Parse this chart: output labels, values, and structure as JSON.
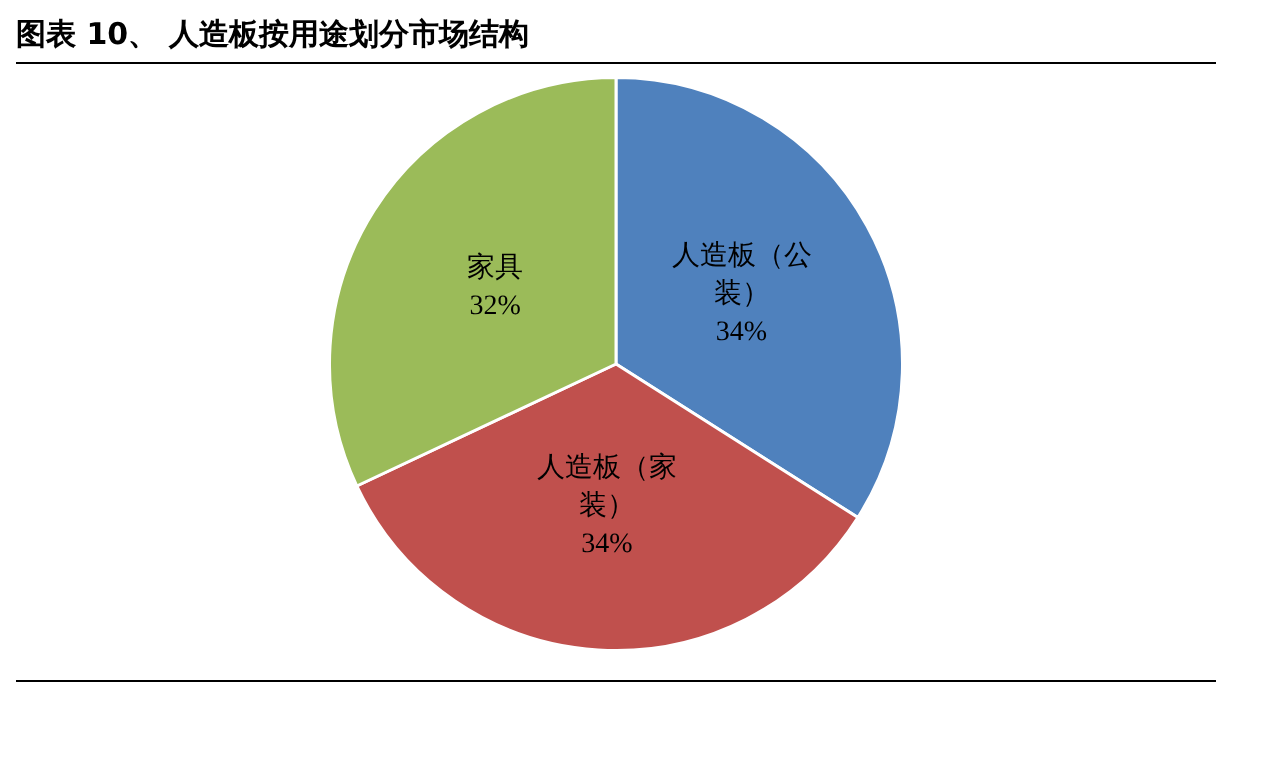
{
  "chart_data": {
    "type": "pie",
    "title": "图表 10、 人造板按用途划分市场结构",
    "categories": [
      "人造板（公装）",
      "人造板（家装）",
      "家具"
    ],
    "values": [
      34,
      34,
      32
    ],
    "value_labels": [
      "34%",
      "34%",
      "32%"
    ],
    "colors": [
      "#4f81bd",
      "#c0504d",
      "#9bbb59"
    ],
    "legend": false
  }
}
